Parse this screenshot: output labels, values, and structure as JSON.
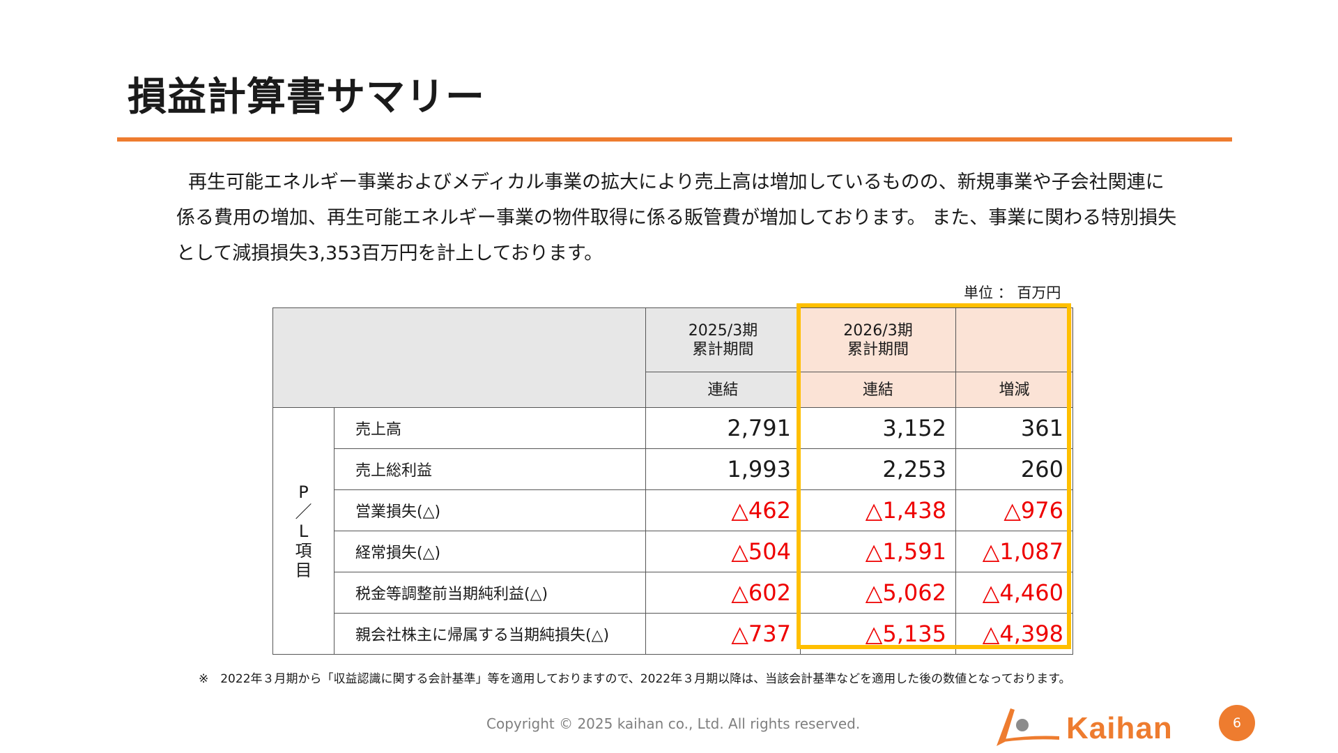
{
  "title": "損益計算書サマリー",
  "intro": {
    "line1": "再生可能エネルギー事業およびメディカル事業の拡大により売上高は増加しているものの、新規事業や子会社関連に",
    "line2": "係る費用の増加、再生可能エネルギー事業の物件取得に係る販管費が増加しております。 また、事業に関わる特別損失",
    "line3": "として減損損失3,353百万円を計上しております。"
  },
  "unit_label": "単位 ： 百万円",
  "table": {
    "col_2025_line1": "2025/3期",
    "col_2025_line2": "累計期間",
    "col_2026_line1": "2026/3期",
    "col_2026_line2": "累計期間",
    "sub_2025": "連結",
    "sub_2026": "連結",
    "sub_diff": "増減",
    "side_label_1": "P",
    "side_label_2": "／",
    "side_label_3": "L",
    "side_label_4": "項",
    "side_label_5": "目",
    "rows": [
      {
        "item": "売上高",
        "v2025": "2,791",
        "v2026": "3,152",
        "diff": "361"
      },
      {
        "item": "売上総利益",
        "v2025": "1,993",
        "v2026": "2,253",
        "diff": "260"
      },
      {
        "item": "営業損失(△)",
        "v2025": "△462",
        "v2026": "△1,438",
        "diff": "△976"
      },
      {
        "item": "経常損失(△)",
        "v2025": "△504",
        "v2026": "△1,591",
        "diff": "△1,087"
      },
      {
        "item": "税金等調整前当期純利益(△)",
        "v2025": "△602",
        "v2026": "△5,062",
        "diff": "△4,460"
      },
      {
        "item": "親会社株主に帰属する当期純損失(△)",
        "v2025": "△737",
        "v2026": "△5,135",
        "diff": "△4,398"
      }
    ]
  },
  "note": "※　2022年３月期から「収益認識に関する会計基準」等を適用しておりますので、2022年３月期以降は、当該会計基準などを適用した後の数値となっております。",
  "copyright": "Copyright © 2025 kaihan co., Ltd. All rights reserved.",
  "logo_text": "Kaihan",
  "page_number": "6",
  "colors": {
    "accent": "#ee7c2f",
    "highlight": "#ffbf00",
    "negative": "#ee0000",
    "header_gray": "#e7e7e7",
    "header_orange": "#fbe3d6"
  }
}
